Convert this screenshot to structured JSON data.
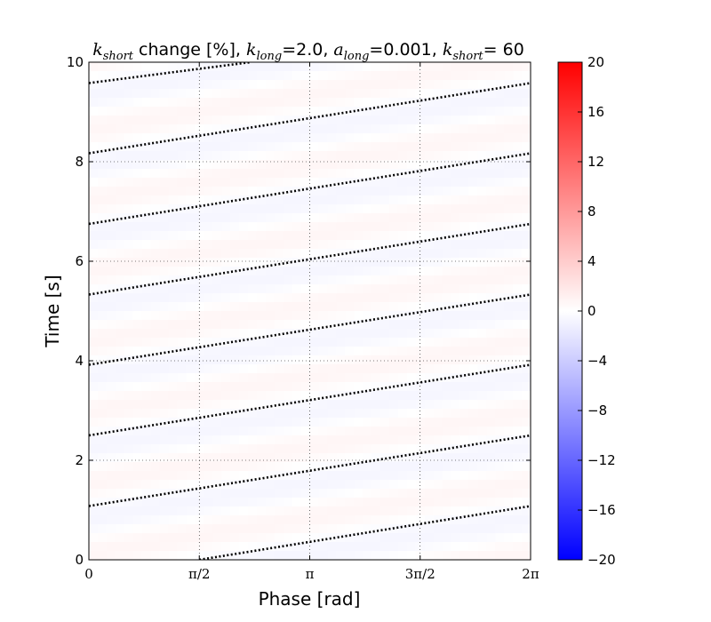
{
  "chart_data": {
    "type": "heatmap",
    "title": {
      "prefix_sym": "k",
      "prefix_sub": "short",
      "text1": " change [%], ",
      "s2_sym": "k",
      "s2_sub": "long",
      "s2_val": "=2.0, ",
      "s3_sym": "a",
      "s3_sub": "long",
      "s3_val": "=0.001, ",
      "s4_sym": "k",
      "s4_sub": "short",
      "s4_val": "= 60"
    },
    "xlabel": "Phase [rad]",
    "ylabel": "Time [s]",
    "xlim": [
      0,
      6.2832
    ],
    "ylim": [
      0,
      10
    ],
    "x_ticks": [
      {
        "value": 0,
        "label": "0"
      },
      {
        "value": 1.5708,
        "label": "π/2"
      },
      {
        "value": 3.1416,
        "label": "π"
      },
      {
        "value": 4.7124,
        "label": "3π/2"
      },
      {
        "value": 6.2832,
        "label": "2π"
      }
    ],
    "y_ticks": [
      {
        "value": 0,
        "label": "0"
      },
      {
        "value": 2,
        "label": "2"
      },
      {
        "value": 4,
        "label": "4"
      },
      {
        "value": 6,
        "label": "6"
      },
      {
        "value": 8,
        "label": "8"
      },
      {
        "value": 10,
        "label": "10"
      }
    ],
    "grid": true,
    "colormap": "bwr",
    "colorbar": {
      "range": [
        -20,
        20
      ],
      "ticks": [
        {
          "value": 20,
          "label": "20"
        },
        {
          "value": 16,
          "label": "16"
        },
        {
          "value": 12,
          "label": "12"
        },
        {
          "value": 8,
          "label": "8"
        },
        {
          "value": 4,
          "label": "4"
        },
        {
          "value": 0,
          "label": "0"
        },
        {
          "value": -4,
          "label": "−4"
        },
        {
          "value": -8,
          "label": "−8"
        },
        {
          "value": -12,
          "label": "−12"
        },
        {
          "value": -16,
          "label": "−16"
        },
        {
          "value": -20,
          "label": "−20"
        }
      ]
    },
    "colors": {
      "positive": "#ff0000",
      "neutral": "#ffffff",
      "negative": "#0000ff"
    },
    "dotted_lines": [
      {
        "x": [
          1.57,
          6.2832
        ],
        "y": [
          0.0,
          1.08
        ]
      },
      {
        "x": [
          0,
          6.2832
        ],
        "y": [
          1.08,
          2.5
        ]
      },
      {
        "x": [
          0,
          6.2832
        ],
        "y": [
          2.5,
          3.92
        ]
      },
      {
        "x": [
          0,
          6.2832
        ],
        "y": [
          3.92,
          5.33
        ]
      },
      {
        "x": [
          0,
          6.2832
        ],
        "y": [
          5.33,
          6.75
        ]
      },
      {
        "x": [
          0,
          6.2832
        ],
        "y": [
          6.75,
          8.17
        ]
      },
      {
        "x": [
          0,
          6.2832
        ],
        "y": [
          8.17,
          9.58
        ]
      },
      {
        "x": [
          0,
          2.3
        ],
        "y": [
          9.58,
          10.0
        ]
      }
    ],
    "field_amplitude": 0.4
  }
}
